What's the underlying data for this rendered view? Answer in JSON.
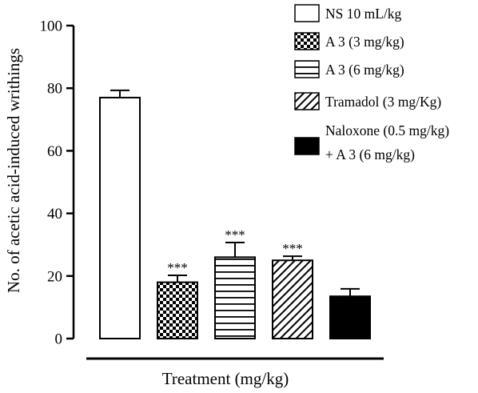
{
  "chart_data": {
    "type": "bar",
    "ylabel": "No. of acetic acid-induced writhings",
    "xlabel": "Treatment (mg/kg)",
    "ylim": [
      0,
      100
    ],
    "yticks": [
      0,
      20,
      40,
      60,
      80,
      100
    ],
    "grid": false,
    "legend_position": "top-right",
    "categories": [
      "NS 10 mL/kg",
      "A 3 (3 mg/kg)",
      "A 3 (6 mg/kg)",
      "Tramadol (3 mg/Kg)",
      "Naloxone (0.5 mg/kg) + A 3 (6 mg/kg)"
    ],
    "series": [
      {
        "values": [
          77,
          18,
          26,
          25,
          13.5
        ],
        "errors": [
          2.3,
          2.2,
          4.7,
          1.3,
          2.4
        ],
        "annotations": [
          "",
          "***",
          "***",
          "***",
          ""
        ]
      }
    ],
    "fills": [
      "blank",
      "checker",
      "horizontal-lines",
      "diagonal-hatch",
      "solid-black"
    ],
    "legend": [
      {
        "lines": [
          "NS 10 mL/kg"
        ],
        "fill": "blank"
      },
      {
        "lines": [
          "A 3 (3 mg/kg)"
        ],
        "fill": "checker"
      },
      {
        "lines": [
          "A 3 (6 mg/kg)"
        ],
        "fill": "horizontal-lines"
      },
      {
        "lines": [
          "Tramadol (3 mg/Kg)"
        ],
        "fill": "diagonal-hatch"
      },
      {
        "lines": [
          "Naloxone (0.5 mg/kg)",
          "+ A 3 (6 mg/kg)"
        ],
        "fill": "solid-black"
      }
    ]
  }
}
